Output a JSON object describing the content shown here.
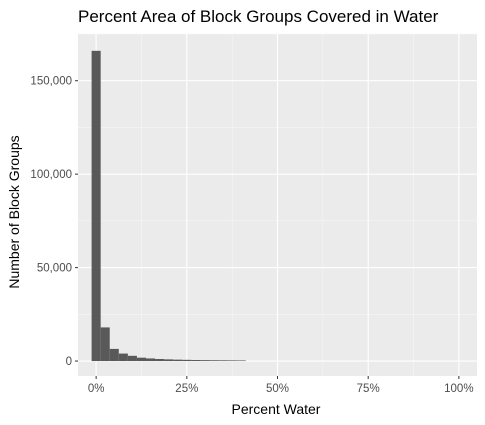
{
  "chart_data": {
    "type": "bar",
    "title": "Percent Area of Block Groups Covered in Water",
    "xlabel": "Percent Water",
    "ylabel": "Number of Block Groups",
    "xlim": [
      -5,
      105
    ],
    "ylim": [
      -8000,
      175000
    ],
    "x_ticks": [
      0,
      25,
      50,
      75,
      100
    ],
    "x_tick_labels": [
      "0%",
      "25%",
      "50%",
      "75%",
      "100%"
    ],
    "y_ticks": [
      0,
      50000,
      100000,
      150000
    ],
    "y_tick_labels": [
      "0",
      "50,000",
      "100,000",
      "150,000"
    ],
    "bin_width": 2.5,
    "bins": [
      {
        "x0": -1.25,
        "x1": 1.25,
        "value": 166000
      },
      {
        "x0": 1.25,
        "x1": 3.75,
        "value": 18000
      },
      {
        "x0": 3.75,
        "x1": 6.25,
        "value": 6500
      },
      {
        "x0": 6.25,
        "x1": 8.75,
        "value": 4000
      },
      {
        "x0": 8.75,
        "x1": 11.25,
        "value": 2800
      },
      {
        "x0": 11.25,
        "x1": 13.75,
        "value": 1800
      },
      {
        "x0": 13.75,
        "x1": 16.25,
        "value": 1400
      },
      {
        "x0": 16.25,
        "x1": 18.75,
        "value": 1100
      },
      {
        "x0": 18.75,
        "x1": 21.25,
        "value": 900
      },
      {
        "x0": 21.25,
        "x1": 23.75,
        "value": 750
      },
      {
        "x0": 23.75,
        "x1": 26.25,
        "value": 650
      },
      {
        "x0": 26.25,
        "x1": 28.75,
        "value": 550
      },
      {
        "x0": 28.75,
        "x1": 31.25,
        "value": 480
      },
      {
        "x0": 31.25,
        "x1": 33.75,
        "value": 420
      },
      {
        "x0": 33.75,
        "x1": 36.25,
        "value": 380
      },
      {
        "x0": 36.25,
        "x1": 38.75,
        "value": 340
      },
      {
        "x0": 38.75,
        "x1": 41.25,
        "value": 300
      }
    ],
    "grid": true,
    "colors": {
      "panel": "#ebebeb",
      "grid_major": "#ffffff",
      "grid_minor": "#f7f7f7",
      "bar": "#595959",
      "tick": "#333333"
    }
  }
}
